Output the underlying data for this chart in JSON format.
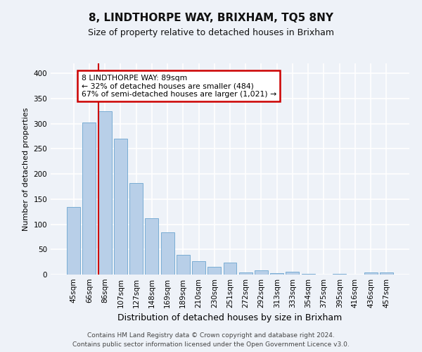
{
  "title": "8, LINDTHORPE WAY, BRIXHAM, TQ5 8NY",
  "subtitle": "Size of property relative to detached houses in Brixham",
  "xlabel": "Distribution of detached houses by size in Brixham",
  "ylabel": "Number of detached properties",
  "categories": [
    "45sqm",
    "66sqm",
    "86sqm",
    "107sqm",
    "127sqm",
    "148sqm",
    "169sqm",
    "189sqm",
    "210sqm",
    "230sqm",
    "251sqm",
    "272sqm",
    "292sqm",
    "313sqm",
    "333sqm",
    "354sqm",
    "375sqm",
    "395sqm",
    "416sqm",
    "436sqm",
    "457sqm"
  ],
  "values": [
    135,
    303,
    325,
    270,
    182,
    112,
    84,
    39,
    27,
    15,
    24,
    4,
    9,
    3,
    5,
    1,
    0,
    2,
    0,
    4,
    4
  ],
  "bar_color": "#b8cfe8",
  "bar_edge_color": "#7aadd4",
  "highlight_index": 2,
  "highlight_color": "#cc0000",
  "annotation_text": "8 LINDTHORPE WAY: 89sqm\n← 32% of detached houses are smaller (484)\n67% of semi-detached houses are larger (1,021) →",
  "annotation_box_color": "#ffffff",
  "annotation_box_edge_color": "#cc0000",
  "footer_line1": "Contains HM Land Registry data © Crown copyright and database right 2024.",
  "footer_line2": "Contains public sector information licensed under the Open Government Licence v3.0.",
  "ylim": [
    0,
    420
  ],
  "yticks": [
    0,
    50,
    100,
    150,
    200,
    250,
    300,
    350,
    400
  ],
  "background_color": "#eef2f8",
  "grid_color": "#ffffff",
  "title_fontsize": 11,
  "subtitle_fontsize": 9,
  "ylabel_fontsize": 8,
  "xlabel_fontsize": 9,
  "tick_fontsize": 7.5,
  "footer_fontsize": 6.5
}
